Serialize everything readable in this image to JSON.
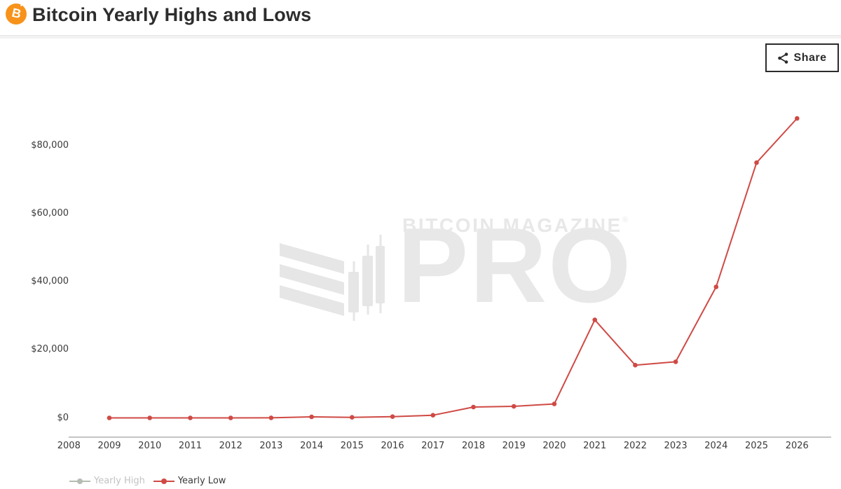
{
  "header": {
    "title": "Bitcoin Yearly Highs and Lows",
    "logo_icon": "bitcoin-icon",
    "logo_letter": "B"
  },
  "toolbar": {
    "share_label": "Share",
    "share_icon": "share-icon"
  },
  "watermark": {
    "brand_line": "BITCOIN MAGAZINE",
    "registered_mark": "®",
    "brand_big": "PRO"
  },
  "colors": {
    "accent_orange": "#f7931a",
    "yearly_low_red": "#cf4a45",
    "yearly_high_disabled_gray": "#b5bdb2",
    "watermark_gray": "#e8e8e8"
  },
  "chart_data": {
    "type": "line",
    "title": "Bitcoin Yearly Highs and Lows",
    "xlabel": "",
    "ylabel": "",
    "x": [
      2009,
      2010,
      2011,
      2012,
      2013,
      2014,
      2015,
      2016,
      2017,
      2018,
      2019,
      2020,
      2021,
      2022,
      2023,
      2024,
      2025,
      2026
    ],
    "series": [
      {
        "name": "Yearly High",
        "color": "#b5bdb2",
        "visible": false,
        "values": []
      },
      {
        "name": "Yearly Low",
        "color": "#cf4a45",
        "visible": true,
        "values": [
          0,
          0.01,
          0.29,
          4,
          13,
          310,
          172,
          365,
          780,
          3200,
          3400,
          4100,
          28800,
          15500,
          16500,
          38500,
          75000,
          88000
        ]
      }
    ],
    "xticks": [
      "2008",
      "2009",
      "2010",
      "2011",
      "2012",
      "2013",
      "2014",
      "2015",
      "2016",
      "2017",
      "2018",
      "2019",
      "2020",
      "2021",
      "2022",
      "2023",
      "2024",
      "2025",
      "2026"
    ],
    "ytick_labels": [
      "$0",
      "$20,000",
      "$40,000",
      "$60,000",
      "$80,000"
    ],
    "ytick_values": [
      0,
      20000,
      40000,
      60000,
      80000
    ],
    "xlim": [
      2008,
      2026.8
    ],
    "ylim": [
      0,
      92000
    ],
    "grid": false,
    "legend_position": "bottom-left",
    "legend": [
      {
        "label": "Yearly High",
        "state": "disabled"
      },
      {
        "label": "Yearly Low",
        "state": "active"
      }
    ]
  }
}
